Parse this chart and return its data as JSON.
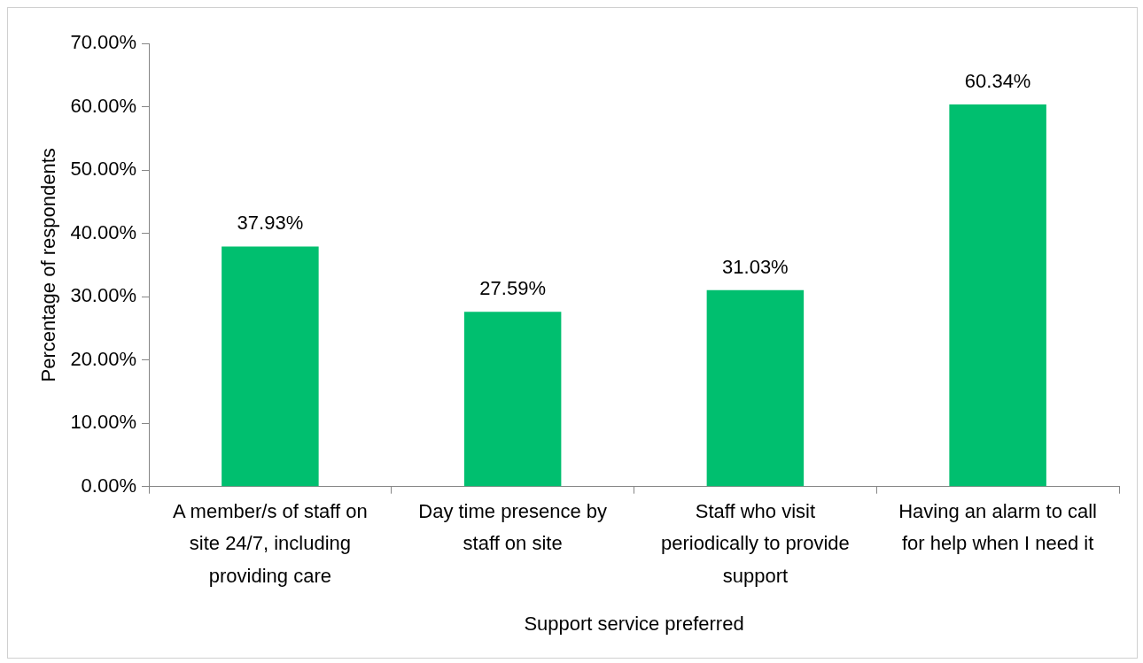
{
  "chart_data": {
    "type": "bar",
    "xlabel": "Support service preferred",
    "ylabel": "Percentage of respondents",
    "categories": [
      "A member/s of staff on site 24/7, including providing care",
      "Day time presence by staff on site",
      "Staff who visit periodically to provide support",
      "Having an alarm to call for help when I need it"
    ],
    "values": [
      37.93,
      27.59,
      31.03,
      60.34
    ],
    "value_labels": [
      "37.93%",
      "27.59%",
      "31.03%",
      "60.34%"
    ],
    "color": "#00bf6f",
    "ylim": [
      0,
      70
    ],
    "yticks": [
      {
        "value": 0,
        "label": "0.00%"
      },
      {
        "value": 10,
        "label": "10.00%"
      },
      {
        "value": 20,
        "label": "20.00%"
      },
      {
        "value": 30,
        "label": "30.00%"
      },
      {
        "value": 40,
        "label": "40.00%"
      },
      {
        "value": 50,
        "label": "50.00%"
      },
      {
        "value": 60,
        "label": "60.00%"
      },
      {
        "value": 70,
        "label": "70.00%"
      }
    ],
    "grid": false,
    "legend": false
  }
}
